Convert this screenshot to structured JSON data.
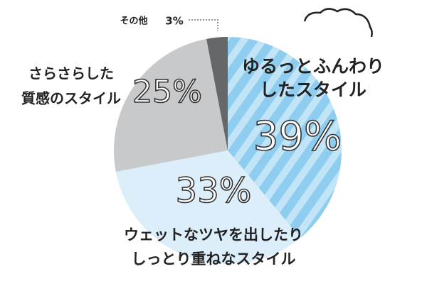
{
  "chart_data": {
    "type": "pie",
    "categories": [
      [
        "ゆるっとふんわり",
        "したスタイル"
      ],
      [
        "ウェットなツヤを出したり",
        "しっとり重ねなスタイル"
      ],
      [
        "さらさらした",
        "質感のスタイル"
      ],
      [
        "その他"
      ]
    ],
    "values": [
      39,
      33,
      25,
      3
    ],
    "value_labels": [
      "39%",
      "33%",
      "25%",
      "3%"
    ],
    "colors": [
      "#8ecdf0",
      "#dceefa",
      "#c8c9cb",
      "#666769"
    ]
  }
}
